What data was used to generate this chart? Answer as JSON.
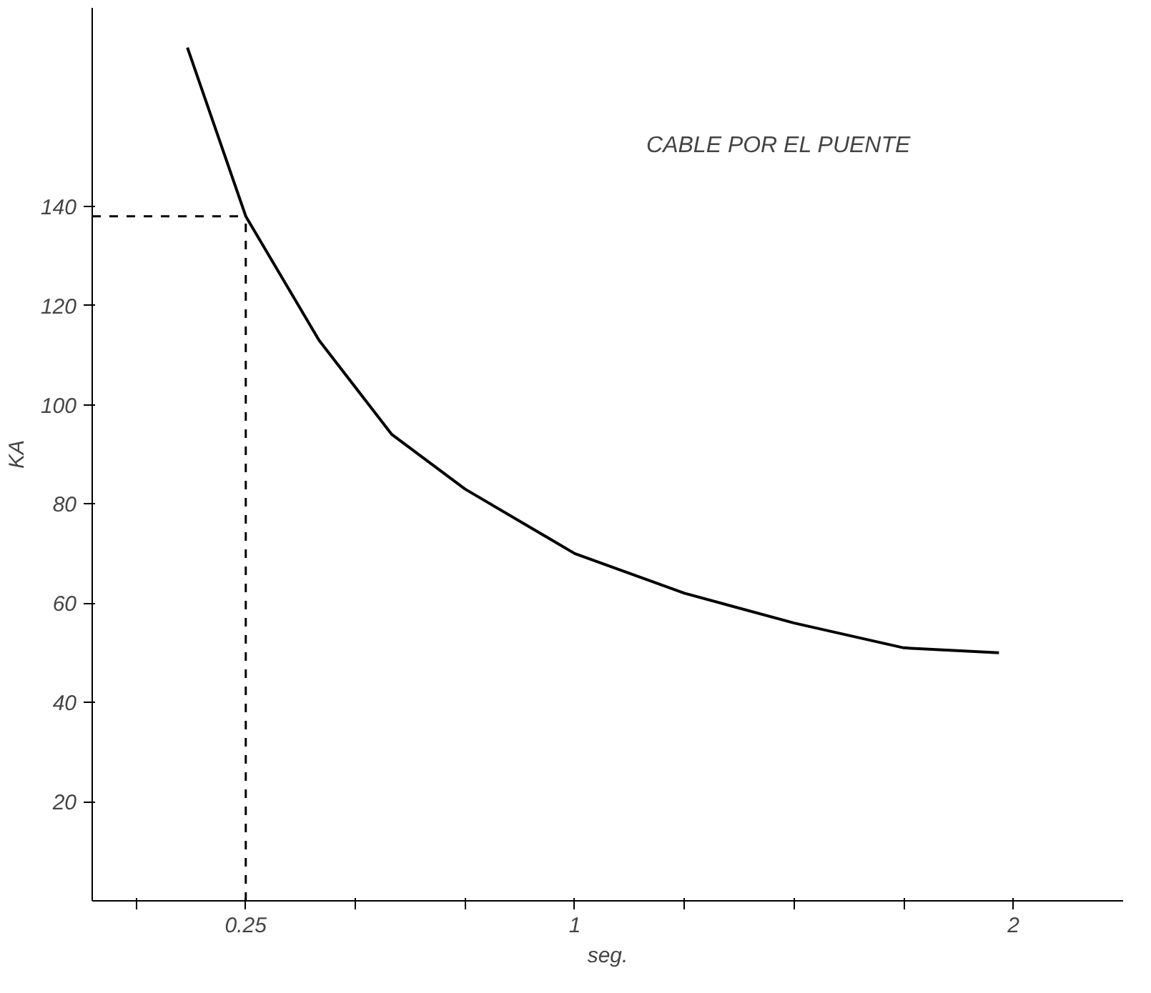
{
  "chart_data": {
    "type": "line",
    "xlabel": "seg.",
    "ylabel": "KA",
    "x": [
      0.117,
      0.25,
      0.417,
      0.583,
      0.75,
      1.0,
      1.25,
      1.5,
      1.75,
      1.967
    ],
    "series": [
      {
        "color": "#000000",
        "values": [
          172,
          138,
          113,
          94,
          83,
          70,
          62,
          56,
          51,
          50
        ]
      }
    ],
    "xlim": [
      -0.1,
      2.25
    ],
    "ylim": [
      0,
      180
    ],
    "xticks": [
      {
        "value": 0,
        "label": null
      },
      0.25,
      {
        "value": 0.5,
        "label": null
      },
      {
        "value": 0.75,
        "label": null
      },
      1,
      {
        "value": 1.25,
        "label": null
      },
      {
        "value": 1.5,
        "label": null
      },
      {
        "value": 1.75,
        "label": null
      },
      2
    ],
    "yticks": [
      20,
      40,
      60,
      80,
      100,
      120,
      140
    ],
    "ref_lines": [
      {
        "axis": "x",
        "value": 0.25,
        "line_style": "dashed",
        "color": "#000000"
      },
      {
        "axis": "y",
        "value": 138,
        "line_style": "dashed",
        "color": "#000000"
      }
    ],
    "annotations": [
      "CABLE POR EL PUENTE"
    ],
    "grid": false,
    "marker": "none",
    "line_style": "solid"
  }
}
